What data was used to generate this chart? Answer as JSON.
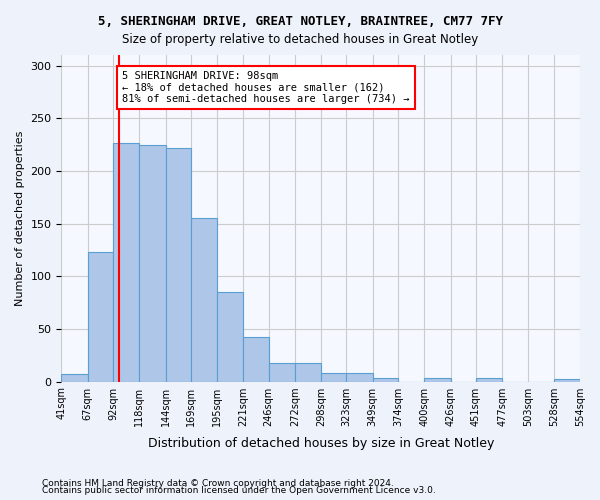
{
  "title1": "5, SHERINGHAM DRIVE, GREAT NOTLEY, BRAINTREE, CM77 7FY",
  "title2": "Size of property relative to detached houses in Great Notley",
  "xlabel": "Distribution of detached houses by size in Great Notley",
  "ylabel": "Number of detached properties",
  "bar_edges": [
    41,
    67,
    92,
    118,
    144,
    169,
    195,
    221,
    246,
    272,
    298,
    323,
    349,
    374,
    400,
    426,
    451,
    477,
    503,
    528,
    554
  ],
  "bar_heights": [
    7,
    123,
    226,
    225,
    222,
    155,
    85,
    42,
    18,
    18,
    8,
    8,
    3,
    0,
    3,
    0,
    3,
    0,
    0,
    2
  ],
  "bar_color": "#aec6e8",
  "bar_edgecolor": "#5a9fd4",
  "property_line_x": 98,
  "property_line_color": "red",
  "annotation_text": "5 SHERINGHAM DRIVE: 98sqm\n← 18% of detached houses are smaller (162)\n81% of semi-detached houses are larger (734) →",
  "annotation_box_color": "white",
  "annotation_box_edgecolor": "red",
  "ylim": [
    0,
    310
  ],
  "yticks": [
    0,
    50,
    100,
    150,
    200,
    250,
    300
  ],
  "footer1": "Contains HM Land Registry data © Crown copyright and database right 2024.",
  "footer2": "Contains public sector information licensed under the Open Government Licence v3.0.",
  "bg_color": "#eef3fb",
  "plot_bg_color": "#f5f8fe",
  "grid_color": "#cccccc"
}
